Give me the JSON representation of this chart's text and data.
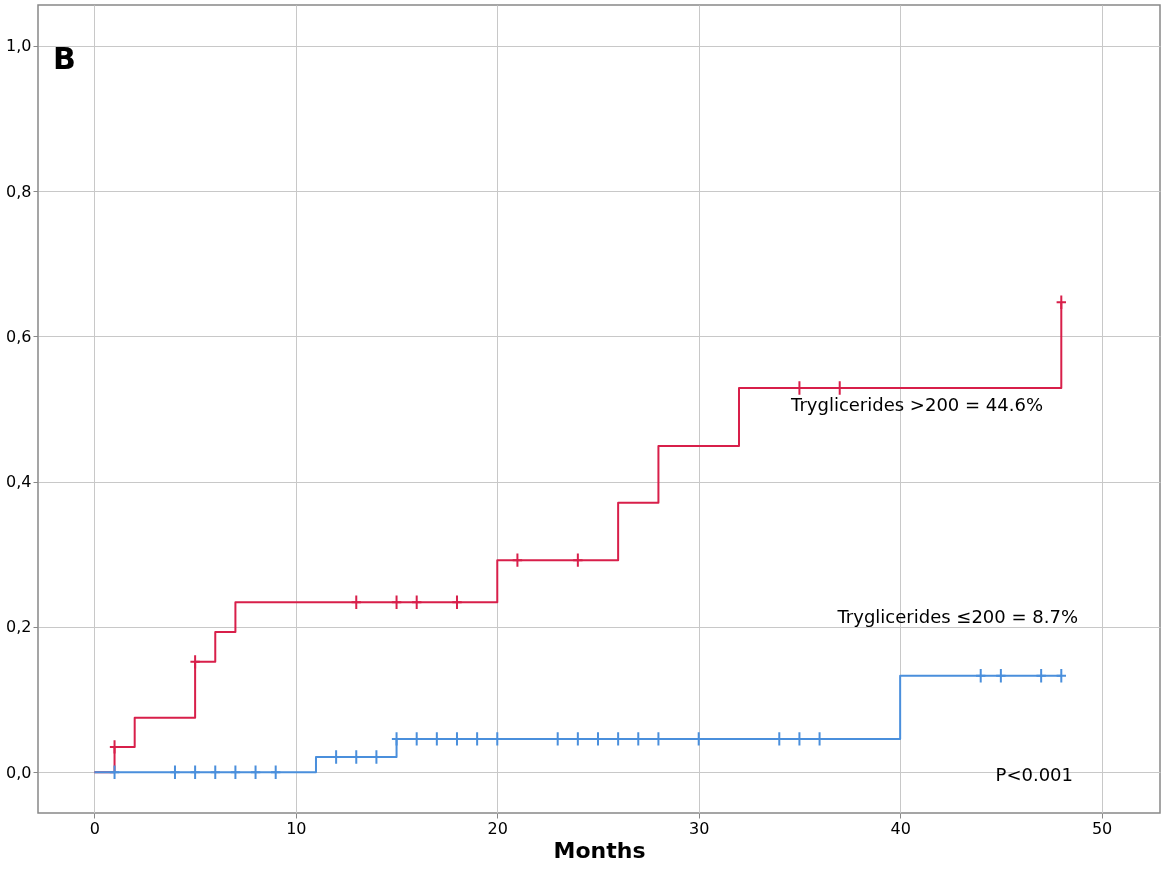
{
  "chart_data": {
    "type": "step",
    "xlabel": "Months",
    "xlim": [
      -2.8,
      52.9
    ],
    "ylim": [
      -0.056,
      1.056
    ],
    "xticks": [
      0,
      10,
      20,
      30,
      40,
      50
    ],
    "yticks": [
      {
        "value": 0,
        "label": "0,0"
      },
      {
        "value": 0.2,
        "label": "0,2"
      },
      {
        "value": 0.4,
        "label": "0,4"
      },
      {
        "value": 0.6,
        "label": "0,6"
      },
      {
        "value": 0.8,
        "label": "0,8"
      },
      {
        "value": 1,
        "label": "1,0"
      }
    ],
    "grid": true,
    "line_style": "solid",
    "series": [
      {
        "color": "#d81f4a",
        "marker": "none",
        "x": [
          0,
          1,
          2,
          5,
          6,
          7,
          20,
          26,
          28,
          32,
          48
        ],
        "values": [
          0,
          0.035,
          0.075,
          0.152,
          0.193,
          0.234,
          0.292,
          0.371,
          0.449,
          0.529,
          0.647
        ]
      },
      {
        "color": "#4a8fdc",
        "marker": "none",
        "x": [
          0,
          11,
          15,
          40,
          48
        ],
        "values": [
          0,
          0.021,
          0.046,
          0.133,
          0.133
        ]
      },
      {
        "type": "scatter",
        "color": "#d81f4a",
        "marker": "cross",
        "x": [
          1,
          5,
          13,
          15,
          16,
          18,
          21,
          24,
          35,
          37,
          48
        ],
        "values": [
          0.035,
          0.152,
          0.234,
          0.234,
          0.234,
          0.234,
          0.292,
          0.292,
          0.529,
          0.529,
          0.647
        ]
      },
      {
        "type": "scatter",
        "color": "#4a8fdc",
        "marker": "cross",
        "x": [
          1,
          4,
          5,
          6,
          7,
          8,
          9,
          12,
          13,
          14,
          15,
          16,
          17,
          18,
          19,
          20,
          23,
          24,
          25,
          26,
          27,
          28,
          30,
          34,
          35,
          36,
          44,
          45,
          47,
          48
        ],
        "values": [
          0,
          0,
          0,
          0,
          0,
          0,
          0,
          0.021,
          0.021,
          0.021,
          0.046,
          0.046,
          0.046,
          0.046,
          0.046,
          0.046,
          0.046,
          0.046,
          0.046,
          0.046,
          0.046,
          0.046,
          0.046,
          0.046,
          0.046,
          0.046,
          0.133,
          0.133,
          0.133,
          0.133
        ]
      }
    ],
    "annotations": [
      "B",
      "Tryglicerides >200 = 44.6%",
      "Tryglicerides ≤200 = 8.7%",
      "P<0.001"
    ]
  }
}
